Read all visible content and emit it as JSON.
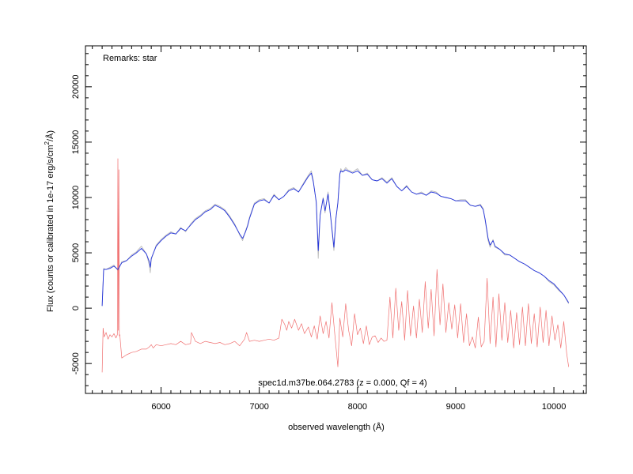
{
  "chart_data": {
    "type": "line",
    "xlabel": "observed wavelength (Å)",
    "ylabel_parts": {
      "main": "Flux (counts or calibrated in 1e-17 erg/s/cm",
      "sup": "2",
      "end": "/Å)"
    },
    "annotation_top": "Remarks: star",
    "annotation_bottom": "spec1d.m37be.064.2783 (z = 0.000, Qf = 4)",
    "xlim": [
      5230,
      10330
    ],
    "ylim": [
      -7700,
      23700
    ],
    "x_ticks": [
      6000,
      7000,
      8000,
      9000,
      10000
    ],
    "x_minor_step": 100,
    "y_ticks": [
      -5000,
      0,
      5000,
      10000,
      15000,
      20000
    ],
    "y_minor_step": 1000,
    "grid": false,
    "colors": {
      "raw": "#bbbbbb",
      "smoothed": "#2233dd",
      "error": "#f07070"
    },
    "series": [
      {
        "key": "raw",
        "x": [
          5400,
          5415,
          5440,
          5480,
          5520,
          5560,
          5600,
          5650,
          5700,
          5750,
          5800,
          5850,
          5880,
          5890,
          5900,
          5950,
          6000,
          6050,
          6100,
          6150,
          6200,
          6250,
          6300,
          6350,
          6400,
          6450,
          6500,
          6550,
          6600,
          6650,
          6700,
          6750,
          6800,
          6830,
          6860,
          6880,
          6900,
          6950,
          7000,
          7050,
          7100,
          7150,
          7200,
          7250,
          7300,
          7350,
          7400,
          7450,
          7500,
          7530,
          7550,
          7580,
          7600,
          7620,
          7650,
          7670,
          7700,
          7730,
          7760,
          7780,
          7800,
          7820,
          7830,
          7850,
          7880,
          7900,
          7950,
          8000,
          8050,
          8100,
          8150,
          8200,
          8250,
          8300,
          8350,
          8400,
          8450,
          8500,
          8550,
          8600,
          8650,
          8700,
          8750,
          8800,
          8850,
          8900,
          8950,
          9000,
          9050,
          9100,
          9150,
          9200,
          9250,
          9280,
          9300,
          9330,
          9350,
          9380,
          9400,
          9450,
          9500,
          9550,
          9600,
          9650,
          9700,
          9750,
          9800,
          9850,
          9900,
          9950,
          10000,
          10050,
          10100,
          10150
        ],
        "y": [
          200,
          3600,
          3500,
          3700,
          3900,
          3400,
          4200,
          4300,
          4800,
          5100,
          5600,
          4900,
          3900,
          3200,
          4400,
          5700,
          6200,
          6600,
          6900,
          6700,
          7300,
          6900,
          7600,
          8100,
          8400,
          8800,
          9000,
          9400,
          9200,
          8900,
          8300,
          7600,
          6600,
          6100,
          7000,
          7500,
          8200,
          9500,
          9800,
          9900,
          9500,
          10300,
          9800,
          10100,
          10700,
          10900,
          10500,
          11300,
          12000,
          12400,
          11500,
          9500,
          4500,
          8500,
          10000,
          8600,
          10500,
          7900,
          5200,
          8000,
          9600,
          12200,
          12600,
          12300,
          12700,
          12500,
          12300,
          12600,
          12000,
          12200,
          11600,
          11500,
          11800,
          11400,
          11800,
          11000,
          10600,
          11100,
          10500,
          10300,
          10500,
          10200,
          10600,
          10500,
          10100,
          10000,
          9900,
          9700,
          9800,
          9800,
          9300,
          9200,
          9400,
          9000,
          7900,
          6100,
          5500,
          6200,
          5500,
          5300,
          4800,
          4800,
          4500,
          4200,
          4000,
          3700,
          3400,
          3200,
          2900,
          2400,
          2100,
          1600,
          1200,
          400
        ]
      },
      {
        "key": "smoothed",
        "x": [
          5400,
          5415,
          5440,
          5480,
          5520,
          5560,
          5600,
          5650,
          5700,
          5750,
          5800,
          5850,
          5880,
          5890,
          5900,
          5950,
          6000,
          6050,
          6100,
          6150,
          6200,
          6250,
          6300,
          6350,
          6400,
          6450,
          6500,
          6550,
          6600,
          6650,
          6700,
          6750,
          6800,
          6830,
          6860,
          6880,
          6900,
          6950,
          7000,
          7050,
          7100,
          7150,
          7200,
          7250,
          7300,
          7350,
          7400,
          7450,
          7500,
          7530,
          7550,
          7580,
          7600,
          7620,
          7650,
          7670,
          7700,
          7730,
          7760,
          7780,
          7800,
          7820,
          7830,
          7850,
          7880,
          7900,
          7950,
          8000,
          8050,
          8100,
          8150,
          8200,
          8250,
          8300,
          8350,
          8400,
          8450,
          8500,
          8550,
          8600,
          8650,
          8700,
          8750,
          8800,
          8850,
          8900,
          8950,
          9000,
          9050,
          9100,
          9150,
          9200,
          9250,
          9280,
          9300,
          9330,
          9350,
          9380,
          9400,
          9450,
          9500,
          9550,
          9600,
          9650,
          9700,
          9750,
          9800,
          9850,
          9900,
          9950,
          10000,
          10050,
          10100,
          10150
        ],
        "y": [
          200,
          3500,
          3500,
          3600,
          3800,
          3500,
          4100,
          4300,
          4700,
          5000,
          5400,
          4900,
          4200,
          3700,
          4500,
          5600,
          6100,
          6500,
          6800,
          6700,
          7200,
          7000,
          7500,
          8000,
          8300,
          8700,
          8900,
          9300,
          9100,
          8800,
          8200,
          7500,
          6700,
          6300,
          6900,
          7400,
          8100,
          9400,
          9700,
          9800,
          9500,
          10200,
          9800,
          10100,
          10600,
          10800,
          10500,
          11200,
          11900,
          12200,
          11400,
          9600,
          5200,
          8400,
          9900,
          8800,
          10300,
          8000,
          5500,
          8100,
          9500,
          12100,
          12400,
          12300,
          12500,
          12400,
          12200,
          12400,
          12000,
          12100,
          11600,
          11500,
          11700,
          11300,
          11700,
          11000,
          10600,
          11000,
          10500,
          10300,
          10400,
          10200,
          10500,
          10400,
          10100,
          10000,
          9900,
          9700,
          9700,
          9700,
          9300,
          9200,
          9300,
          8900,
          8000,
          6300,
          5700,
          6100,
          5600,
          5300,
          4900,
          4800,
          4500,
          4200,
          4000,
          3700,
          3400,
          3200,
          2900,
          2500,
          2200,
          1700,
          1200,
          500
        ]
      },
      {
        "key": "error",
        "x": [
          5400,
          5410,
          5420,
          5440,
          5460,
          5480,
          5500,
          5520,
          5540,
          5555,
          5560,
          5565,
          5570,
          5575,
          5580,
          5600,
          5650,
          5700,
          5750,
          5800,
          5850,
          5880,
          5900,
          5920,
          5950,
          6000,
          6050,
          6100,
          6150,
          6200,
          6250,
          6300,
          6310,
          6350,
          6400,
          6450,
          6500,
          6550,
          6600,
          6650,
          6700,
          6750,
          6800,
          6850,
          6870,
          6900,
          6950,
          7000,
          7050,
          7100,
          7150,
          7200,
          7230,
          7260,
          7280,
          7300,
          7330,
          7360,
          7400,
          7430,
          7460,
          7500,
          7530,
          7560,
          7590,
          7620,
          7650,
          7680,
          7710,
          7740,
          7770,
          7800,
          7820,
          7850,
          7880,
          7910,
          7940,
          7970,
          8000,
          8030,
          8060,
          8090,
          8120,
          8150,
          8180,
          8210,
          8240,
          8270,
          8300,
          8330,
          8360,
          8390,
          8420,
          8450,
          8480,
          8510,
          8540,
          8570,
          8600,
          8630,
          8660,
          8690,
          8720,
          8750,
          8780,
          8810,
          8840,
          8870,
          8900,
          8930,
          8960,
          8990,
          9020,
          9050,
          9080,
          9110,
          9140,
          9170,
          9200,
          9230,
          9260,
          9290,
          9320,
          9350,
          9380,
          9410,
          9440,
          9470,
          9500,
          9530,
          9560,
          9590,
          9620,
          9650,
          9680,
          9710,
          9740,
          9770,
          9800,
          9830,
          9860,
          9890,
          9920,
          9950,
          9980,
          10010,
          10040,
          10070,
          10100,
          10130,
          10150
        ],
        "y": [
          -5800,
          -1800,
          -2600,
          -2200,
          -2800,
          -2400,
          -2600,
          -2300,
          -2700,
          -2400,
          13500,
          -2000,
          12500,
          -2500,
          -2400,
          -4500,
          -4200,
          -4000,
          -3900,
          -3700,
          -3700,
          -3500,
          -3300,
          -3600,
          -3300,
          -3400,
          -3300,
          -3200,
          -3300,
          -3000,
          -3300,
          -3200,
          -2200,
          -3000,
          -3200,
          -3000,
          -3100,
          -3200,
          -3100,
          -3300,
          -3200,
          -3000,
          -3400,
          -2800,
          -2200,
          -3000,
          -2900,
          -3000,
          -2900,
          -2800,
          -2900,
          -2700,
          -1000,
          -1500,
          -2000,
          -1200,
          -1800,
          -1000,
          -2000,
          -1400,
          -2300,
          -1700,
          -2600,
          -1600,
          -2800,
          -700,
          -2300,
          -1200,
          -2700,
          500,
          -2500,
          -5300,
          -900,
          -2600,
          400,
          -2000,
          -3400,
          -500,
          -2400,
          -1800,
          -3200,
          -1600,
          -3300,
          -2600,
          -2500,
          -3100,
          -2700,
          -3000,
          -2900,
          1000,
          -2700,
          1800,
          -2000,
          600,
          -2900,
          1600,
          -2500,
          200,
          -2700,
          800,
          -2200,
          2400,
          -1800,
          1700,
          -2500,
          3500,
          -1500,
          2200,
          -2200,
          500,
          -1900,
          300,
          -2700,
          400,
          -3100,
          -500,
          -3400,
          -2600,
          -3600,
          -800,
          -3500,
          -3000,
          2700,
          -3200,
          1000,
          -3500,
          1300,
          -2900,
          500,
          -3100,
          -200,
          -3600,
          -400,
          -3300,
          100,
          -3400,
          400,
          -3200,
          -500,
          -3500,
          100,
          -3100,
          -200,
          -3400,
          -700,
          -2900,
          -1500,
          -3600,
          -1200,
          -4100,
          -5300
        ]
      }
    ]
  }
}
